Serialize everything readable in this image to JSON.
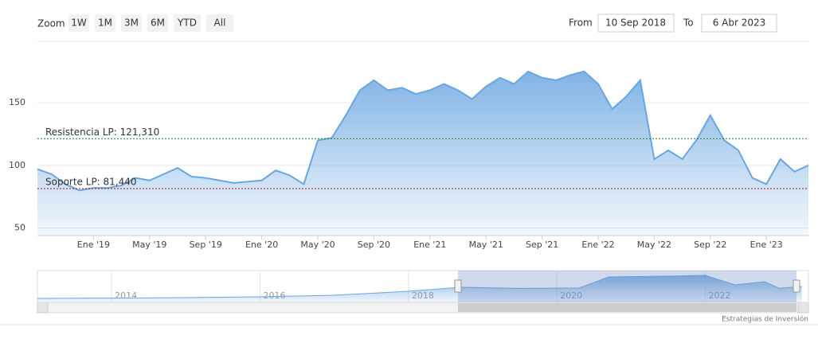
{
  "range_selector": {
    "zoom_label": "Zoom",
    "buttons": [
      "1W",
      "1M",
      "3M",
      "6M",
      "YTD",
      "All"
    ],
    "from_label": "From",
    "from": "10 Sep 2018",
    "to_label": "To",
    "to": "6 Abr 2023"
  },
  "chart_data": {
    "type": "area",
    "color": "#6aa6e0",
    "x": [
      "2018-09",
      "2018-10",
      "2018-11",
      "2018-12",
      "2019-01",
      "2019-02",
      "2019-03",
      "2019-04",
      "2019-05",
      "2019-06",
      "2019-07",
      "2019-08",
      "2019-09",
      "2019-10",
      "2019-11",
      "2019-12",
      "2020-01",
      "2020-02",
      "2020-03",
      "2020-04",
      "2020-05",
      "2020-06",
      "2020-07",
      "2020-08",
      "2020-09",
      "2020-10",
      "2020-11",
      "2020-12",
      "2021-01",
      "2021-02",
      "2021-03",
      "2021-04",
      "2021-05",
      "2021-06",
      "2021-07",
      "2021-08",
      "2021-09",
      "2021-10",
      "2021-11",
      "2021-12",
      "2022-01",
      "2022-02",
      "2022-03",
      "2022-04",
      "2022-05",
      "2022-06",
      "2022-07",
      "2022-08",
      "2022-09",
      "2022-10",
      "2022-11",
      "2022-12",
      "2023-01",
      "2023-02",
      "2023-03",
      "2023-04"
    ],
    "values": [
      97,
      93,
      85,
      80,
      82,
      82,
      84,
      90,
      88,
      93,
      98,
      91,
      90,
      88,
      86,
      87,
      88,
      96,
      92,
      85,
      120,
      122,
      140,
      160,
      168,
      160,
      162,
      157,
      160,
      165,
      160,
      153,
      163,
      170,
      165,
      175,
      170,
      168,
      172,
      175,
      165,
      145,
      155,
      168,
      105,
      112,
      105,
      120,
      140,
      120,
      112,
      90,
      85,
      105,
      95,
      100
    ],
    "xlim": [
      "2018-09",
      "2023-04"
    ],
    "xticks": [
      {
        "value": "2019-01",
        "label": "Ene '19"
      },
      {
        "value": "2019-05",
        "label": "May '19"
      },
      {
        "value": "2019-09",
        "label": "Sep '19"
      },
      {
        "value": "2020-01",
        "label": "Ene '20"
      },
      {
        "value": "2020-05",
        "label": "May '20"
      },
      {
        "value": "2020-09",
        "label": "Sep '20"
      },
      {
        "value": "2021-01",
        "label": "Ene '21"
      },
      {
        "value": "2021-05",
        "label": "May '21"
      },
      {
        "value": "2021-09",
        "label": "Sep '21"
      },
      {
        "value": "2022-01",
        "label": "Ene '22"
      },
      {
        "value": "2022-05",
        "label": "May '22"
      },
      {
        "value": "2022-09",
        "label": "Sep '22"
      },
      {
        "value": "2023-01",
        "label": "Ene '23"
      }
    ],
    "ylim": [
      44,
      199
    ],
    "yticks": [
      50,
      100,
      150
    ],
    "grid": true,
    "plot_lines": [
      {
        "value": 121.31,
        "label": "Resistencia LP: 121,310",
        "color": "#1f7a1f"
      },
      {
        "value": 81.44,
        "label": "Soporte LP: 81,440",
        "color": "#a01010"
      }
    ],
    "navigator": {
      "type": "area",
      "x": [
        2013,
        2014,
        2015,
        2016,
        2017,
        2018,
        2018.7,
        2019.5,
        2020.3,
        2020.7,
        2021.5,
        2022,
        2022.4,
        2022.8,
        2023,
        2023.3
      ],
      "values": [
        25,
        27,
        30,
        35,
        45,
        70,
        95,
        88,
        90,
        160,
        165,
        170,
        110,
        130,
        88,
        100
      ],
      "xlim": [
        2013,
        2023.39
      ],
      "ylim": [
        0,
        200
      ],
      "xticks": [
        2014,
        2016,
        2018,
        2020,
        2022
      ]
    }
  },
  "credits": "Estrategias de Inversión"
}
